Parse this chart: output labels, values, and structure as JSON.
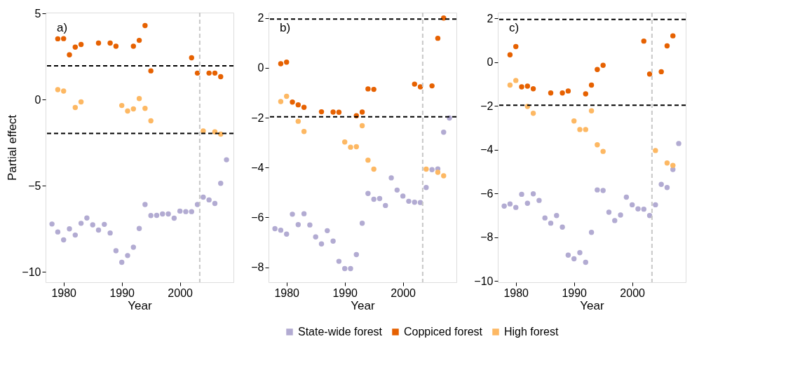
{
  "chart_data": [
    {
      "type": "scatter",
      "ylabel": "Partial effect",
      "xlabel": "Year",
      "annotations": [
        "a)"
      ],
      "xlim": [
        1976.9,
        2009.2
      ],
      "ylim": [
        -10.6,
        5.05
      ],
      "xticks": [
        1980,
        1990,
        2000
      ],
      "yticks": [
        -10,
        -5,
        0,
        5
      ],
      "grid": false,
      "legend": "bottom",
      "marker": "circle",
      "ref_lines": [
        {
          "axis": "y",
          "value": 1.96,
          "color": "#000000",
          "line_style": "dashed"
        },
        {
          "axis": "y",
          "value": -1.96,
          "color": "#000000",
          "line_style": "dashed"
        },
        {
          "axis": "x",
          "value": 2003.4,
          "color": "#c8c8c8",
          "line_style": "dashed"
        }
      ],
      "series": [
        {
          "name": "State-wide forest",
          "color": "#b2abd2",
          "x": [
            1978,
            1979,
            1980,
            1981,
            1982,
            1983,
            1984,
            1985,
            1986,
            1987,
            1988,
            1989,
            1990,
            1991,
            1992,
            1993,
            1994,
            1995,
            1996,
            1997,
            1998,
            1999,
            2000,
            2001,
            2002,
            2003,
            2004,
            2005,
            2006,
            2007,
            2008
          ],
          "values": [
            -7.22,
            -7.68,
            -8.14,
            -7.5,
            -7.86,
            -7.18,
            -6.87,
            -7.27,
            -7.57,
            -7.24,
            -7.74,
            -8.77,
            -9.44,
            -9.05,
            -8.57,
            -7.48,
            -6.09,
            -6.73,
            -6.72,
            -6.64,
            -6.64,
            -6.88,
            -6.47,
            -6.5,
            -6.5,
            -6.09,
            -5.66,
            -5.82,
            -6.03,
            -4.86,
            -3.49
          ]
        },
        {
          "name": "Coppiced forest",
          "color": "#e66101",
          "x": [
            1979,
            1980,
            1981,
            1982,
            1983,
            1986,
            1988,
            1989,
            1992,
            1993,
            1994,
            1995,
            2002,
            2003,
            2005,
            2006,
            2007
          ],
          "values": [
            3.53,
            3.54,
            2.6,
            3.05,
            3.2,
            3.28,
            3.28,
            3.1,
            3.1,
            3.44,
            4.3,
            1.67,
            2.43,
            1.54,
            1.54,
            1.54,
            1.33
          ]
        },
        {
          "name": "High forest",
          "color": "#fdb863",
          "x": [
            1979,
            1980,
            1982,
            1983,
            1990,
            1991,
            1992,
            1993,
            1994,
            1995,
            2004,
            2006,
            2007
          ],
          "values": [
            0.58,
            0.5,
            -0.46,
            -0.13,
            -0.34,
            -0.66,
            -0.54,
            0.06,
            -0.51,
            -1.23,
            -1.82,
            -1.87,
            -2.0
          ]
        }
      ]
    },
    {
      "type": "scatter",
      "xlabel": "Year",
      "annotations": [
        "b)"
      ],
      "xlim": [
        1976.9,
        2009.2
      ],
      "ylim": [
        -8.6,
        2.22
      ],
      "xticks": [
        1980,
        1990,
        2000
      ],
      "yticks": [
        -8,
        -6,
        -4,
        -2,
        0,
        2
      ],
      "grid": false,
      "legend": "bottom",
      "marker": "circle",
      "ref_lines": [
        {
          "axis": "y",
          "value": 1.96,
          "color": "#000000",
          "line_style": "dashed"
        },
        {
          "axis": "y",
          "value": -1.96,
          "color": "#000000",
          "line_style": "dashed"
        },
        {
          "axis": "x",
          "value": 2003.4,
          "color": "#c8c8c8",
          "line_style": "dashed"
        }
      ],
      "series": [
        {
          "name": "State-wide forest",
          "color": "#b2abd2",
          "x": [
            1978,
            1979,
            1980,
            1981,
            1982,
            1983,
            1984,
            1985,
            1986,
            1987,
            1988,
            1989,
            1990,
            1991,
            1992,
            1993,
            1994,
            1995,
            1996,
            1997,
            1998,
            1999,
            2000,
            2001,
            2002,
            2003,
            2004,
            2005,
            2006,
            2007,
            2008
          ],
          "values": [
            -6.45,
            -6.51,
            -6.67,
            -5.87,
            -6.29,
            -5.85,
            -6.3,
            -6.78,
            -7.06,
            -6.53,
            -6.95,
            -7.76,
            -8.05,
            -8.05,
            -7.49,
            -6.23,
            -5.04,
            -5.27,
            -5.24,
            -5.52,
            -4.41,
            -4.9,
            -5.14,
            -5.35,
            -5.39,
            -5.4,
            -4.8,
            -4.08,
            -4.05,
            -2.58,
            -2.01
          ]
        },
        {
          "name": "Coppiced forest",
          "color": "#e66101",
          "x": [
            1979,
            1980,
            1981,
            1982,
            1983,
            1986,
            1988,
            1989,
            1992,
            1993,
            1994,
            1995,
            2002,
            2003,
            2005,
            2006,
            2007
          ],
          "values": [
            0.17,
            0.23,
            -1.37,
            -1.48,
            -1.58,
            -1.76,
            -1.77,
            -1.78,
            -1.92,
            -1.77,
            -0.84,
            -0.86,
            -0.65,
            -0.76,
            -0.72,
            1.19,
            2.0
          ]
        },
        {
          "name": "High forest",
          "color": "#fdb863",
          "x": [
            1979,
            1980,
            1982,
            1983,
            1990,
            1991,
            1992,
            1993,
            1994,
            1995,
            2004,
            2006,
            2007
          ],
          "values": [
            -1.35,
            -1.14,
            -2.14,
            -2.55,
            -2.97,
            -3.18,
            -3.16,
            -2.32,
            -3.7,
            -4.06,
            -4.06,
            -4.19,
            -4.33
          ]
        }
      ]
    },
    {
      "type": "scatter",
      "xlabel": "Year",
      "annotations": [
        "c)"
      ],
      "xlim": [
        1976.9,
        2009.2
      ],
      "ylim": [
        -10.05,
        2.27
      ],
      "xticks": [
        1980,
        1990,
        2000
      ],
      "yticks": [
        -10,
        -8,
        -6,
        -4,
        -2,
        0,
        2
      ],
      "grid": false,
      "legend": "bottom",
      "marker": "circle",
      "ref_lines": [
        {
          "axis": "y",
          "value": 1.96,
          "color": "#000000",
          "line_style": "dashed"
        },
        {
          "axis": "y",
          "value": -1.96,
          "color": "#000000",
          "line_style": "dashed"
        },
        {
          "axis": "x",
          "value": 2003.4,
          "color": "#c8c8c8",
          "line_style": "dashed"
        }
      ],
      "series": [
        {
          "name": "State-wide forest",
          "color": "#b2abd2",
          "x": [
            1978,
            1979,
            1980,
            1981,
            1982,
            1983,
            1984,
            1985,
            1986,
            1987,
            1988,
            1989,
            1990,
            1991,
            1992,
            1993,
            1994,
            1995,
            1996,
            1997,
            1998,
            1999,
            2000,
            2001,
            2002,
            2003,
            2004,
            2005,
            2006,
            2007,
            2008
          ],
          "values": [
            -6.57,
            -6.47,
            -6.63,
            -6.03,
            -6.44,
            -6.01,
            -6.31,
            -7.11,
            -7.35,
            -7.0,
            -7.53,
            -8.81,
            -8.98,
            -8.7,
            -9.14,
            -7.77,
            -5.83,
            -5.86,
            -6.85,
            -7.23,
            -6.98,
            -6.16,
            -6.51,
            -6.7,
            -6.71,
            -7.0,
            -6.51,
            -5.58,
            -5.72,
            -4.9,
            -3.71
          ]
        },
        {
          "name": "Coppiced forest",
          "color": "#e66101",
          "x": [
            1979,
            1980,
            1981,
            1982,
            1983,
            1986,
            1988,
            1989,
            1992,
            1993,
            1994,
            1995,
            2002,
            2003,
            2005,
            2006,
            2007
          ],
          "values": [
            0.34,
            0.72,
            -1.12,
            -1.09,
            -1.21,
            -1.4,
            -1.4,
            -1.31,
            -1.44,
            -1.04,
            -0.33,
            -0.14,
            0.97,
            -0.54,
            -0.43,
            0.75,
            1.21
          ]
        },
        {
          "name": "High forest",
          "color": "#fdb863",
          "x": [
            1979,
            1980,
            1982,
            1983,
            1990,
            1991,
            1992,
            1993,
            1994,
            1995,
            2004,
            2006,
            2007
          ],
          "values": [
            -1.04,
            -0.83,
            -2.02,
            -2.33,
            -2.68,
            -3.07,
            -3.07,
            -2.22,
            -3.77,
            -4.07,
            -4.03,
            -4.6,
            -4.71
          ]
        }
      ]
    }
  ]
}
